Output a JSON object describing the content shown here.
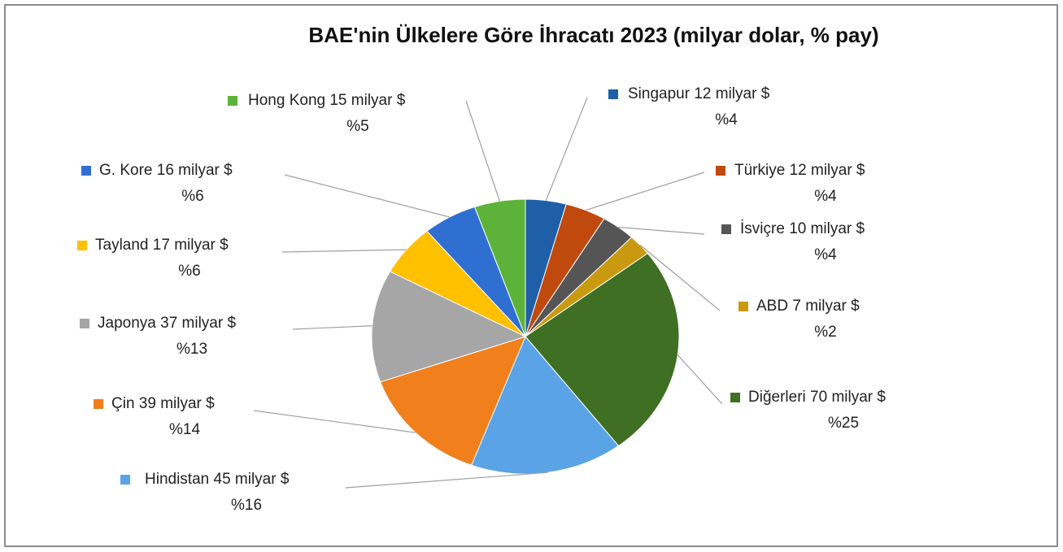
{
  "chart_data": {
    "type": "pie",
    "title": "BAE'nin Ülkelere Göre İhracatı 2023 (milyar dolar, % pay)",
    "categories": [
      "Singapur",
      "Türkiye",
      "İsviçre",
      "ABD",
      "Diğerleri",
      "Hindistan",
      "Çin",
      "Japonya",
      "Tayland",
      "G. Kore",
      "Hong Kong"
    ],
    "values": [
      12,
      12,
      10,
      7,
      70,
      45,
      39,
      37,
      17,
      16,
      15
    ],
    "value_labels": [
      "12 milyar $",
      "12 milyar $",
      "10 milyar $",
      "7 milyar $",
      "70 milyar $",
      "45 milyar $",
      "39 milyar $",
      "37 milyar $",
      "17 milyar $",
      "16 milyar $",
      "15 milyar $"
    ],
    "percents": [
      4,
      4,
      4,
      2,
      25,
      16,
      14,
      13,
      6,
      6,
      5
    ],
    "percent_labels": [
      "%4",
      "%4",
      "%4",
      "%2",
      "%25",
      "%16",
      "%14",
      "%13",
      "%6",
      "%6",
      "%5"
    ],
    "colors": [
      "#1f5fa8",
      "#c0490e",
      "#555555",
      "#c99a10",
      "#3f6f23",
      "#5aa3e6",
      "#f07f1c",
      "#a6a6a6",
      "#ffc000",
      "#2f6fd1",
      "#5db33a"
    ]
  }
}
